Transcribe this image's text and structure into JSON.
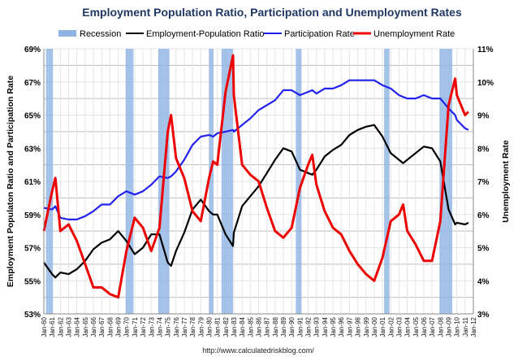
{
  "chart_data": {
    "type": "line",
    "title": "Employment Population Ratio, Participation and Unemployment Rates",
    "ylabel": "Employment Populaton Ratio and Participation Rate",
    "y2label": "Unemployment Rate",
    "source": "http://www.calculatedriskblog.com/",
    "ylim": [
      53,
      69
    ],
    "y2lim": [
      3,
      11
    ],
    "yticks": [
      "53%",
      "55%",
      "57%",
      "59%",
      "61%",
      "63%",
      "65%",
      "67%",
      "69%"
    ],
    "y2ticks": [
      "3%",
      "4%",
      "5%",
      "6%",
      "7%",
      "8%",
      "9%",
      "10%",
      "11%"
    ],
    "xlim": [
      1960,
      2012
    ],
    "xticks": [
      "Jan-60",
      "Jan-61",
      "Jan-62",
      "Jan-63",
      "Jan-64",
      "Jan-65",
      "Jan-66",
      "Jan-67",
      "Jan-68",
      "Jan-69",
      "Jan-70",
      "Jan-71",
      "Jan-72",
      "Jan-73",
      "Jan-74",
      "Jan-75",
      "Jan-76",
      "Jan-77",
      "Jan-78",
      "Jan-79",
      "Jan-80",
      "Jan-81",
      "Jan-82",
      "Jan-83",
      "Jan-84",
      "Jan-85",
      "Jan-86",
      "Jan-87",
      "Jan-88",
      "Jan-89",
      "Jan-90",
      "Jan-91",
      "Jan-92",
      "Jan-93",
      "Jan-94",
      "Jan-95",
      "Jan-96",
      "Jan-97",
      "Jan-98",
      "Jan-99",
      "Jan-00",
      "Jan-01",
      "Jan-02",
      "Jan-03",
      "Jan-04",
      "Jan-05",
      "Jan-06",
      "Jan-07",
      "Jan-08",
      "Jan-09",
      "Jan-10",
      "Jan-11",
      "Jan-12"
    ],
    "legend": [
      "Recession",
      "Employment-Population Ratio",
      "Participation Rate",
      "Unemployment Rate"
    ],
    "legend_position": "top",
    "grid": true,
    "recessions": [
      [
        1960.25,
        1961.1
      ],
      [
        1969.9,
        1970.85
      ],
      [
        1973.85,
        1975.2
      ],
      [
        1980.0,
        1980.55
      ],
      [
        1981.5,
        1982.9
      ],
      [
        1990.5,
        1991.2
      ],
      [
        2001.2,
        2001.85
      ],
      [
        2007.9,
        2009.45
      ]
    ],
    "x": [
      1960,
      1961,
      1961.4,
      1962,
      1963,
      1964,
      1965,
      1966,
      1967,
      1968,
      1969,
      1970,
      1971,
      1972,
      1973,
      1974,
      1975,
      1975.4,
      1976,
      1977,
      1978,
      1979,
      1980,
      1980.5,
      1981,
      1982,
      1982.9,
      1983,
      1984,
      1985,
      1986,
      1987,
      1988,
      1989,
      1990,
      1991,
      1992,
      1992.5,
      1993,
      1994,
      1995,
      1996,
      1997,
      1998,
      1999,
      2000,
      2001,
      2002,
      2003,
      2003.5,
      2004,
      2005,
      2006,
      2007,
      2008,
      2009,
      2009.8,
      2010,
      2011,
      2011.4
    ],
    "series": [
      {
        "name": "Employment-Population Ratio",
        "color": "#000000",
        "axis": "left",
        "values": [
          56.1,
          55.4,
          55.2,
          55.5,
          55.4,
          55.7,
          56.2,
          56.9,
          57.3,
          57.5,
          58.0,
          57.4,
          56.6,
          57.0,
          57.8,
          57.8,
          56.1,
          55.9,
          56.8,
          57.9,
          59.3,
          59.9,
          59.2,
          59.0,
          59.0,
          57.8,
          57.1,
          57.9,
          59.5,
          60.1,
          60.7,
          61.5,
          62.3,
          63.0,
          62.8,
          61.7,
          61.5,
          61.4,
          61.7,
          62.5,
          62.9,
          63.2,
          63.8,
          64.1,
          64.3,
          64.4,
          63.7,
          62.7,
          62.3,
          62.1,
          62.3,
          62.7,
          63.1,
          63.0,
          62.2,
          59.3,
          58.4,
          58.5,
          58.4,
          58.5
        ]
      },
      {
        "name": "Participation Rate",
        "color": "#2222ee",
        "axis": "left",
        "values": [
          59.4,
          59.3,
          59.5,
          58.8,
          58.7,
          58.7,
          58.9,
          59.2,
          59.6,
          59.6,
          60.1,
          60.4,
          60.2,
          60.4,
          60.8,
          61.3,
          61.2,
          61.3,
          61.6,
          62.3,
          63.2,
          63.7,
          63.8,
          63.7,
          63.9,
          64.0,
          64.1,
          64.0,
          64.4,
          64.8,
          65.3,
          65.6,
          65.9,
          66.5,
          66.5,
          66.2,
          66.4,
          66.5,
          66.3,
          66.6,
          66.6,
          66.8,
          67.1,
          67.1,
          67.1,
          67.1,
          66.8,
          66.6,
          66.2,
          66.1,
          66.0,
          66.0,
          66.2,
          66.0,
          66.0,
          65.4,
          65.0,
          64.7,
          64.2,
          64.1
        ]
      },
      {
        "name": "Unemployment Rate",
        "color": "#ee0000",
        "axis": "right",
        "values": [
          5.5,
          6.7,
          7.1,
          5.5,
          5.7,
          5.2,
          4.5,
          3.8,
          3.8,
          3.6,
          3.5,
          4.9,
          5.9,
          5.6,
          4.9,
          5.6,
          8.5,
          9.0,
          7.7,
          7.1,
          6.1,
          5.8,
          7.1,
          7.6,
          7.5,
          9.7,
          10.8,
          9.6,
          7.5,
          7.2,
          7.0,
          6.2,
          5.5,
          5.3,
          5.6,
          6.8,
          7.5,
          7.8,
          6.9,
          6.1,
          5.6,
          5.4,
          4.9,
          4.5,
          4.2,
          4.0,
          4.7,
          5.8,
          6.0,
          6.3,
          5.5,
          5.1,
          4.6,
          4.6,
          5.8,
          9.3,
          10.1,
          9.6,
          9.0,
          9.1
        ]
      }
    ]
  }
}
